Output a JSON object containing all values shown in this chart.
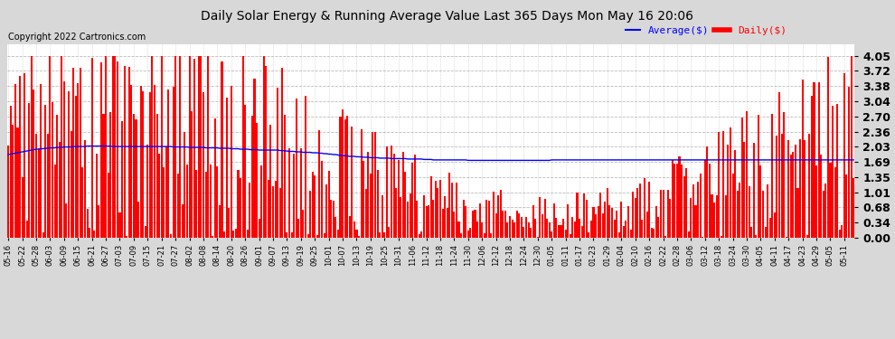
{
  "title": "Daily Solar Energy & Running Average Value Last 365 Days Mon May 16 20:06",
  "copyright": "Copyright 2022 Cartronics.com",
  "legend_avg": "Average($)",
  "legend_daily": "Daily($)",
  "yticks": [
    0.0,
    0.34,
    0.68,
    1.01,
    1.35,
    1.69,
    2.03,
    2.36,
    2.7,
    3.04,
    3.38,
    3.72,
    4.05
  ],
  "ylim": [
    0,
    4.32
  ],
  "bar_color": "#ff0000",
  "avg_color": "#0000ff",
  "bg_color": "#d8d8d8",
  "plot_bg_color": "#ffffff",
  "grid_color": "#aaaaaa",
  "title_fontsize": 10,
  "copyright_fontsize": 7,
  "ytick_fontsize": 9,
  "xtick_fontsize": 6,
  "n_days": 365,
  "xtick_labels": [
    "05-16",
    "05-22",
    "05-28",
    "06-03",
    "06-09",
    "06-15",
    "06-21",
    "06-27",
    "07-03",
    "07-09",
    "07-15",
    "07-21",
    "07-27",
    "08-02",
    "08-08",
    "08-14",
    "08-20",
    "08-26",
    "09-01",
    "09-07",
    "09-13",
    "09-19",
    "09-25",
    "10-01",
    "10-07",
    "10-13",
    "10-19",
    "10-25",
    "10-31",
    "11-06",
    "11-12",
    "11-18",
    "11-24",
    "11-30",
    "12-06",
    "12-12",
    "12-18",
    "12-24",
    "12-30",
    "01-05",
    "01-11",
    "01-17",
    "01-23",
    "01-29",
    "02-04",
    "02-10",
    "02-16",
    "02-22",
    "02-28",
    "03-06",
    "03-12",
    "03-18",
    "03-24",
    "03-30",
    "04-05",
    "04-11",
    "04-17",
    "04-23",
    "04-29",
    "05-05",
    "05-11"
  ],
  "xtick_positions": [
    0,
    6,
    12,
    18,
    24,
    30,
    36,
    42,
    48,
    54,
    60,
    66,
    72,
    78,
    84,
    90,
    96,
    102,
    108,
    114,
    120,
    126,
    132,
    138,
    144,
    150,
    156,
    162,
    168,
    174,
    180,
    186,
    192,
    198,
    204,
    210,
    216,
    222,
    228,
    234,
    240,
    246,
    252,
    258,
    264,
    270,
    276,
    282,
    288,
    294,
    300,
    306,
    312,
    318,
    324,
    330,
    336,
    342,
    348,
    354,
    360
  ],
  "avg_values": [
    1.85,
    1.86,
    1.87,
    1.88,
    1.89,
    1.9,
    1.91,
    1.92,
    1.93,
    1.94,
    1.95,
    1.96,
    1.97,
    1.97,
    1.98,
    1.98,
    1.99,
    1.99,
    2.0,
    2.0,
    2.0,
    2.01,
    2.01,
    2.01,
    2.02,
    2.02,
    2.02,
    2.02,
    2.03,
    2.03,
    2.03,
    2.03,
    2.03,
    2.03,
    2.04,
    2.04,
    2.04,
    2.04,
    2.04,
    2.04,
    2.04,
    2.04,
    2.04,
    2.04,
    2.04,
    2.03,
    2.03,
    2.03,
    2.03,
    2.03,
    2.03,
    2.03,
    2.03,
    2.03,
    2.03,
    2.03,
    2.03,
    2.03,
    2.03,
    2.03,
    2.03,
    2.03,
    2.03,
    2.03,
    2.03,
    2.03,
    2.03,
    2.03,
    2.03,
    2.03,
    2.03,
    2.02,
    2.02,
    2.02,
    2.02,
    2.02,
    2.02,
    2.02,
    2.01,
    2.01,
    2.01,
    2.01,
    2.01,
    2.01,
    2.01,
    2.0,
    2.0,
    2.0,
    2.0,
    2.0,
    2.0,
    1.99,
    1.99,
    1.99,
    1.99,
    1.99,
    1.98,
    1.98,
    1.98,
    1.98,
    1.97,
    1.97,
    1.97,
    1.97,
    1.96,
    1.96,
    1.96,
    1.96,
    1.95,
    1.95,
    1.95,
    1.95,
    1.95,
    1.95,
    1.95,
    1.95,
    1.95,
    1.94,
    1.94,
    1.93,
    1.93,
    1.92,
    1.92,
    1.92,
    1.91,
    1.91,
    1.91,
    1.9,
    1.9,
    1.9,
    1.9,
    1.89,
    1.89,
    1.89,
    1.88,
    1.88,
    1.87,
    1.87,
    1.86,
    1.86,
    1.85,
    1.85,
    1.84,
    1.83,
    1.83,
    1.82,
    1.82,
    1.81,
    1.81,
    1.81,
    1.8,
    1.8,
    1.8,
    1.79,
    1.79,
    1.79,
    1.78,
    1.78,
    1.78,
    1.78,
    1.77,
    1.77,
    1.77,
    1.77,
    1.77,
    1.76,
    1.76,
    1.76,
    1.76,
    1.76,
    1.76,
    1.76,
    1.75,
    1.75,
    1.75,
    1.75,
    1.75,
    1.75,
    1.75,
    1.74,
    1.74,
    1.74,
    1.74,
    1.73,
    1.73,
    1.73,
    1.73,
    1.73,
    1.73,
    1.73,
    1.73,
    1.73,
    1.73,
    1.73,
    1.73,
    1.73,
    1.73,
    1.73,
    1.72,
    1.72,
    1.72,
    1.72,
    1.72,
    1.72,
    1.72,
    1.72,
    1.72,
    1.72,
    1.72,
    1.72,
    1.72,
    1.72,
    1.72,
    1.72,
    1.72,
    1.72,
    1.72,
    1.72,
    1.72,
    1.72,
    1.72,
    1.72,
    1.72,
    1.72,
    1.72,
    1.72,
    1.72,
    1.72,
    1.72,
    1.72,
    1.72,
    1.72,
    1.72,
    1.72,
    1.73,
    1.73,
    1.73,
    1.73,
    1.73,
    1.73,
    1.73,
    1.73,
    1.73,
    1.73,
    1.73,
    1.73,
    1.73,
    1.73,
    1.73,
    1.73,
    1.73,
    1.73,
    1.73,
    1.73,
    1.73,
    1.73,
    1.73,
    1.73,
    1.73,
    1.73,
    1.73,
    1.73,
    1.73,
    1.73,
    1.73,
    1.73,
    1.73,
    1.73,
    1.73,
    1.73,
    1.73,
    1.73,
    1.73,
    1.73,
    1.73,
    1.73,
    1.73,
    1.73,
    1.73,
    1.73,
    1.73,
    1.73,
    1.73,
    1.73,
    1.73,
    1.73,
    1.73,
    1.73,
    1.73,
    1.73,
    1.73,
    1.73,
    1.73,
    1.73,
    1.73,
    1.73,
    1.73,
    1.73,
    1.73,
    1.73,
    1.73,
    1.73,
    1.73,
    1.73,
    1.73,
    1.73,
    1.73,
    1.73,
    1.73,
    1.73,
    1.73,
    1.73,
    1.73,
    1.73,
    1.73,
    1.73,
    1.73,
    1.73,
    1.73,
    1.73,
    1.73,
    1.73,
    1.73,
    1.73,
    1.73,
    1.73,
    1.73,
    1.73,
    1.73,
    1.73,
    1.73,
    1.73,
    1.73,
    1.73,
    1.73,
    1.73,
    1.73,
    1.73,
    1.73,
    1.73,
    1.73,
    1.73,
    1.73,
    1.73,
    1.73,
    1.73,
    1.73,
    1.73,
    1.73,
    1.73,
    1.73,
    1.73,
    1.73,
    1.73,
    1.73,
    1.73,
    1.73,
    1.73,
    1.73,
    1.73,
    1.73,
    1.73,
    1.73,
    1.73,
    1.73
  ]
}
